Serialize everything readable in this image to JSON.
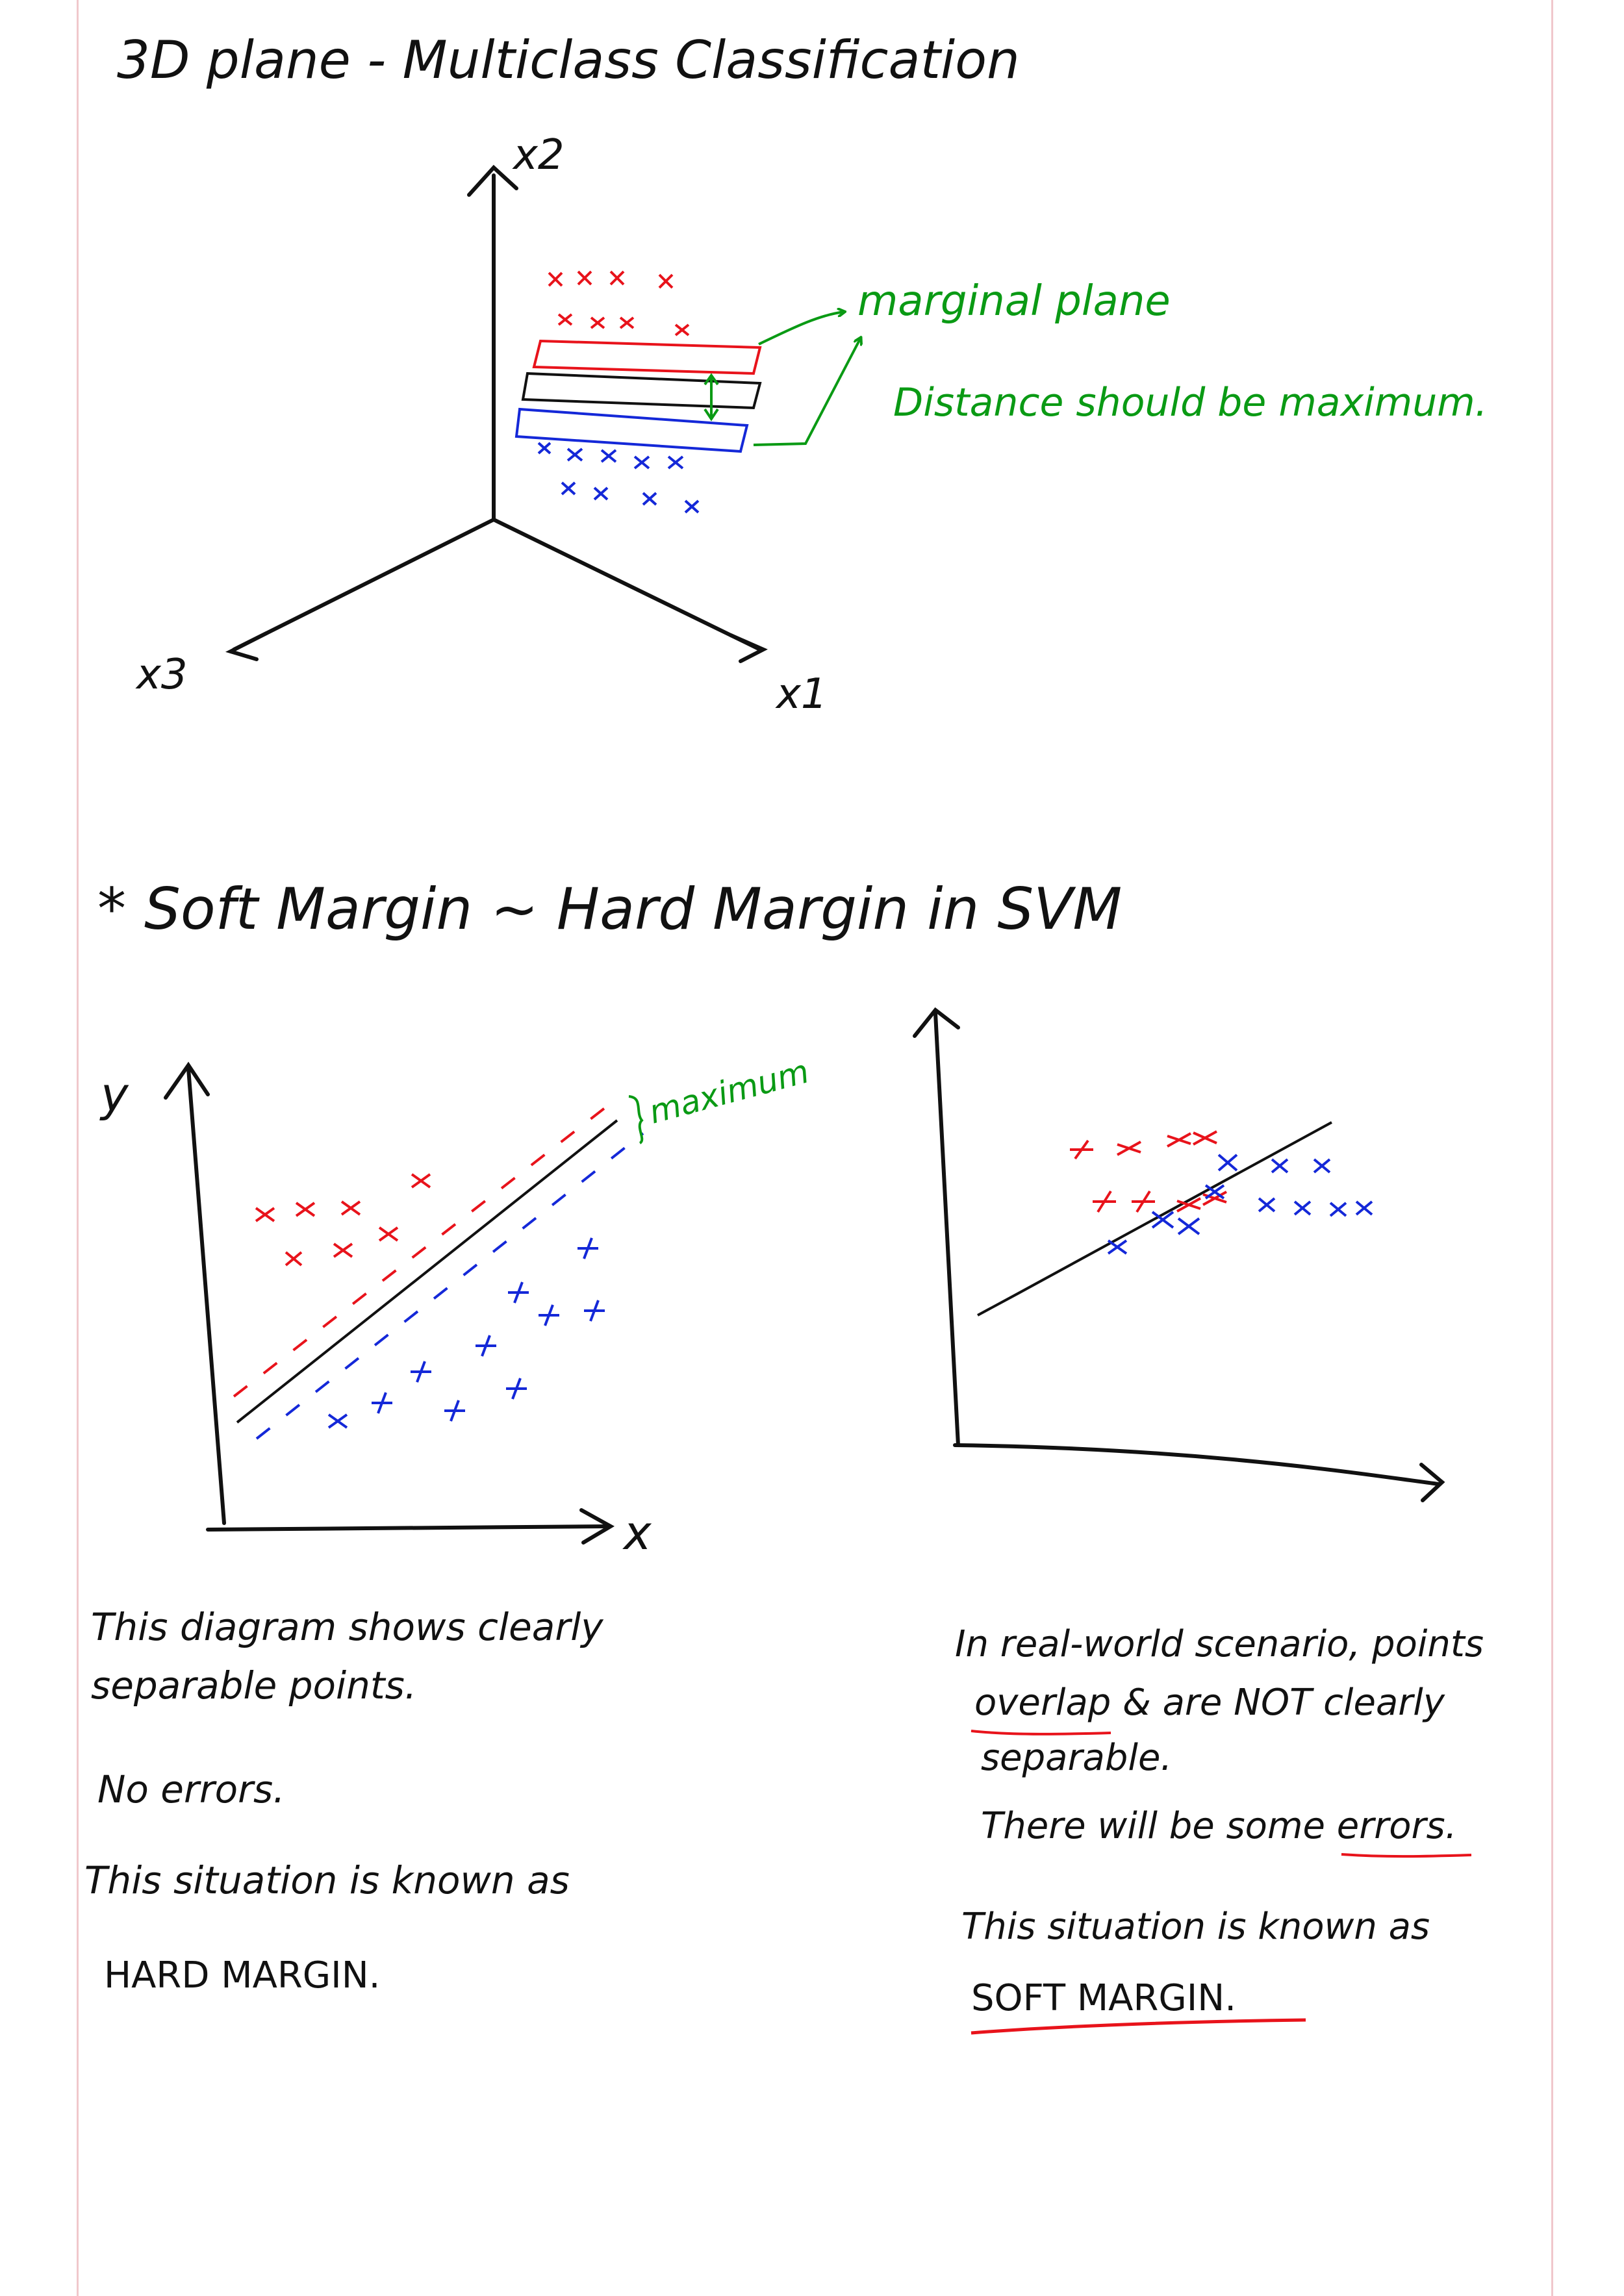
{
  "colors": {
    "ink": "#111111",
    "red": "#e8131b",
    "blue": "#1428d8",
    "green": "#0a9a14"
  },
  "section1": {
    "title": "3D plane - Multiclass Classification",
    "axes": {
      "x1": "x1",
      "x2": "x2",
      "x3": "x3"
    },
    "annotation_marginal_plane": "marginal plane",
    "annotation_distance": "Distance should be maximum."
  },
  "section2": {
    "heading": "* Soft Margin ~ Hard Margin in SVM",
    "left_plot": {
      "ylabel": "y",
      "xlabel": "x",
      "annotation": "maximum"
    },
    "left_notes": {
      "line1": "This diagram shows clearly",
      "line2": "separable points.",
      "line3": "No errors.",
      "line4": "This situation is known as",
      "line5": "HARD MARGIN."
    },
    "right_notes": {
      "line1": "In real-world scenario, points",
      "line2": "overlap & are NOT clearly",
      "line3": "separable.",
      "line4": "There will be some errors.",
      "line5": "This situation is known as",
      "line6": "SOFT MARGIN."
    }
  }
}
